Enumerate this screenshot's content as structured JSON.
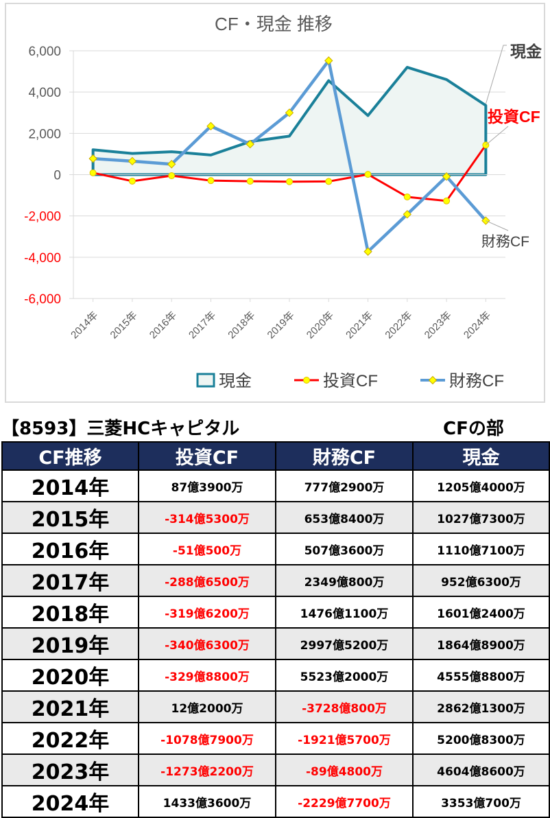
{
  "chart_data": {
    "type": "line",
    "title": "CF・現金 推移",
    "categories": [
      "2014年",
      "2015年",
      "2016年",
      "2017年",
      "2018年",
      "2019年",
      "2020年",
      "2021年",
      "2022年",
      "2023年",
      "2024年"
    ],
    "y_ticks": [
      "6,000",
      "4,000",
      "2,000",
      "0",
      "-2,000",
      "-4,000",
      "-6,000"
    ],
    "ylim": [
      -6000,
      6000
    ],
    "grid": true,
    "legend_position": "bottom",
    "series": [
      {
        "name": "現金",
        "kind": "area",
        "color": "#1a8099",
        "fill": "#eef5f3",
        "values": [
          1205.4,
          1027.73,
          1110.71,
          952.63,
          1601.24,
          1864.89,
          4555.88,
          2862.13,
          5200.83,
          4604.86,
          3353.07
        ]
      },
      {
        "name": "投資CF",
        "kind": "line",
        "color": "#ff0000",
        "marker": "#ffff00",
        "values": [
          87.39,
          -314.53,
          -51.05,
          -288.65,
          -319.62,
          -340.63,
          -329.88,
          12.2,
          -1078.79,
          -1273.22,
          1433.36
        ]
      },
      {
        "name": "財務CF",
        "kind": "line",
        "color": "#5b9bd5",
        "marker": "#ffff00",
        "values": [
          777.29,
          653.84,
          507.36,
          2349.08,
          1476.11,
          2997.52,
          5523.2,
          -3728.08,
          -1921.57,
          -89.48,
          -2229.77
        ]
      }
    ],
    "end_labels": [
      {
        "text": "現金",
        "color": "#404040"
      },
      {
        "text": "投資CF",
        "color": "#ff0000"
      },
      {
        "text": "財務CF",
        "color": "#404040"
      }
    ]
  },
  "company_title": "【8593】三菱HCキャピタル",
  "section_title": "CFの部",
  "table": {
    "headers": [
      "CF推移",
      "投資CF",
      "財務CF",
      "現金"
    ],
    "rows": [
      {
        "year": "2014年",
        "invest": "87億3900万",
        "finance": "777億2900万",
        "cash": "1205億4000万",
        "invest_neg": false,
        "finance_neg": false
      },
      {
        "year": "2015年",
        "invest": "-314億5300万",
        "finance": "653億8400万",
        "cash": "1027億7300万",
        "invest_neg": true,
        "finance_neg": false
      },
      {
        "year": "2016年",
        "invest": "-51億500万",
        "finance": "507億3600万",
        "cash": "1110億7100万",
        "invest_neg": true,
        "finance_neg": false
      },
      {
        "year": "2017年",
        "invest": "-288億6500万",
        "finance": "2349億800万",
        "cash": "952億6300万",
        "invest_neg": true,
        "finance_neg": false
      },
      {
        "year": "2018年",
        "invest": "-319億6200万",
        "finance": "1476億1100万",
        "cash": "1601億2400万",
        "invest_neg": true,
        "finance_neg": false
      },
      {
        "year": "2019年",
        "invest": "-340億6300万",
        "finance": "2997億5200万",
        "cash": "1864億8900万",
        "invest_neg": true,
        "finance_neg": false
      },
      {
        "year": "2020年",
        "invest": "-329億8800万",
        "finance": "5523億2000万",
        "cash": "4555億8800万",
        "invest_neg": true,
        "finance_neg": false
      },
      {
        "year": "2021年",
        "invest": "12億2000万",
        "finance": "-3728億800万",
        "cash": "2862億1300万",
        "invest_neg": false,
        "finance_neg": true
      },
      {
        "year": "2022年",
        "invest": "-1078億7900万",
        "finance": "-1921億5700万",
        "cash": "5200億8300万",
        "invest_neg": true,
        "finance_neg": true
      },
      {
        "year": "2023年",
        "invest": "-1273億2200万",
        "finance": "-89億4800万",
        "cash": "4604億8600万",
        "invest_neg": true,
        "finance_neg": true
      },
      {
        "year": "2024年",
        "invest": "1433億3600万",
        "finance": "-2229億7700万",
        "cash": "3353億700万",
        "invest_neg": false,
        "finance_neg": true
      }
    ]
  }
}
